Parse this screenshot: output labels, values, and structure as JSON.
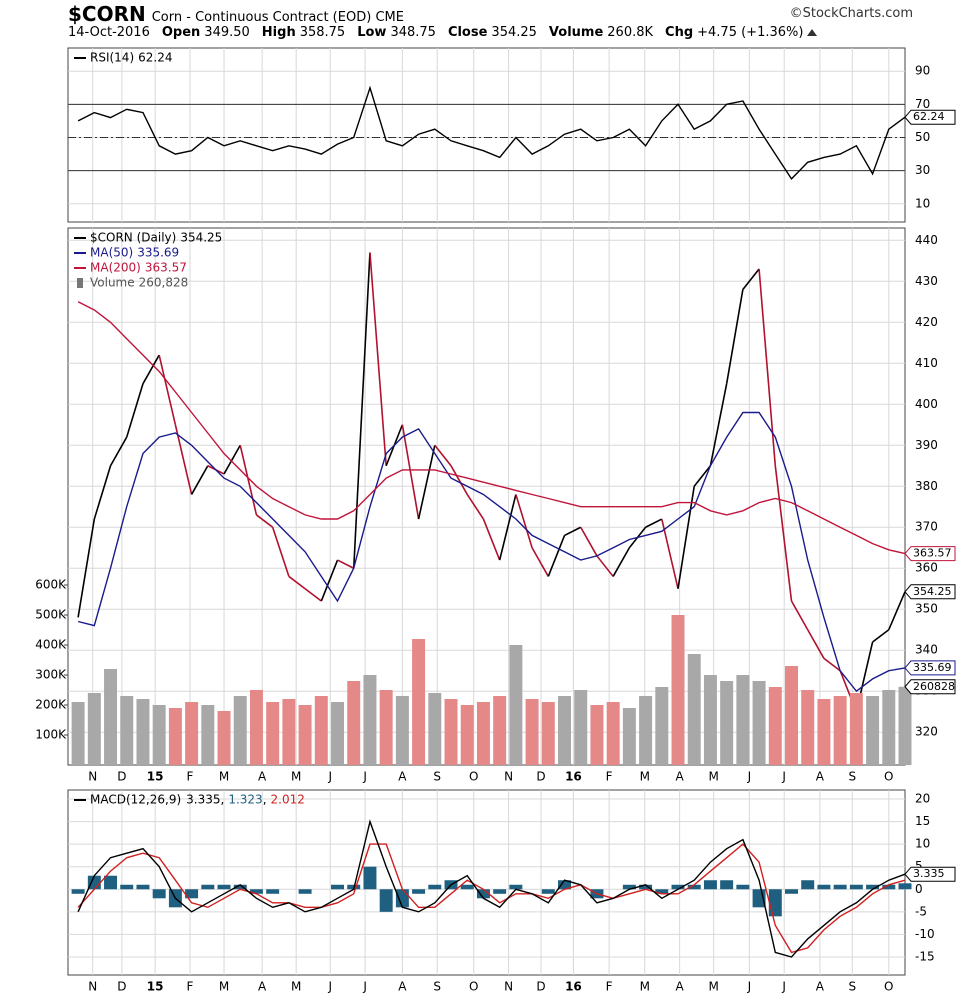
{
  "header": {
    "symbol": "$CORN",
    "name": "Corn - Continuous Contract (EOD)",
    "exchange": "CME",
    "source": "©StockCharts.com",
    "date": "14-Oct-2016",
    "fields": [
      {
        "label": "Open",
        "value": "349.50"
      },
      {
        "label": "High",
        "value": "358.75"
      },
      {
        "label": "Low",
        "value": "348.75"
      },
      {
        "label": "Close",
        "value": "354.25"
      },
      {
        "label": "Volume",
        "value": "260.8K"
      },
      {
        "label": "Chg",
        "value": "+4.75 (+1.36%)"
      }
    ]
  },
  "chart_data": [
    {
      "type": "line",
      "xlim": [
        0,
        51.5
      ],
      "ylim": [
        -1,
        104
      ],
      "yticks": [
        90,
        70,
        50,
        30,
        10
      ],
      "grid": true,
      "xticks": [
        1.4,
        3.2,
        5.25,
        7.4,
        9.5,
        11.85,
        13.95,
        16.05,
        18.2,
        20.5,
        22.65,
        24.9,
        27.05,
        29.05,
        31.05,
        33.25,
        35.45,
        37.6,
        39.7,
        41.9,
        44.05,
        46.25,
        48.25,
        50.5
      ],
      "reference_lines": [
        {
          "value": 70,
          "style": "solid"
        },
        {
          "value": 50,
          "style": "dashed"
        },
        {
          "value": 30,
          "style": "solid"
        }
      ],
      "series": [
        {
          "name": "RSI(14)",
          "type": "line",
          "color": "#000000",
          "tag": true,
          "values": [
            60,
            65,
            62,
            67,
            65,
            45,
            40,
            42,
            50,
            45,
            48,
            45,
            42,
            45,
            43,
            40,
            46,
            50,
            80,
            48,
            45,
            52,
            55,
            48,
            45,
            42,
            38,
            50,
            40,
            45,
            52,
            55,
            48,
            50,
            55,
            45,
            60,
            70,
            55,
            60,
            70,
            72,
            55,
            40,
            25,
            35,
            38,
            40,
            45,
            28,
            55,
            62.24
          ]
        }
      ]
    },
    {
      "type": "line",
      "xlim": [
        0,
        51.5
      ],
      "ylim": [
        312,
        443
      ],
      "yticks": [
        440,
        430,
        420,
        410,
        400,
        390,
        380,
        370,
        360,
        350,
        340,
        330,
        320
      ],
      "grid": true,
      "y2lim": [
        0,
        1790000
      ],
      "y2ticks": [
        {
          "value": 100000,
          "label": "100K"
        },
        {
          "value": 200000,
          "label": "200K"
        },
        {
          "value": 300000,
          "label": "300K"
        },
        {
          "value": 400000,
          "label": "400K"
        },
        {
          "value": 500000,
          "label": "500K"
        },
        {
          "value": 600000,
          "label": "600K"
        }
      ],
      "xticks": [
        {
          "value": 1.4,
          "label": "N"
        },
        {
          "value": 3.2,
          "label": "D"
        },
        {
          "value": 5.25,
          "label": "15"
        },
        {
          "value": 7.4,
          "label": "F"
        },
        {
          "value": 9.5,
          "label": "M"
        },
        {
          "value": 11.85,
          "label": "A"
        },
        {
          "value": 13.95,
          "label": "M"
        },
        {
          "value": 16.05,
          "label": "J"
        },
        {
          "value": 18.2,
          "label": "J"
        },
        {
          "value": 20.5,
          "label": "A"
        },
        {
          "value": 22.65,
          "label": "S"
        },
        {
          "value": 24.9,
          "label": "O"
        },
        {
          "value": 27.05,
          "label": "N"
        },
        {
          "value": 29.05,
          "label": "D"
        },
        {
          "value": 31.05,
          "label": "16"
        },
        {
          "value": 33.25,
          "label": "F"
        },
        {
          "value": 35.45,
          "label": "M"
        },
        {
          "value": 37.6,
          "label": "A"
        },
        {
          "value": 39.7,
          "label": "M"
        },
        {
          "value": 41.9,
          "label": "J"
        },
        {
          "value": 44.05,
          "label": "J"
        },
        {
          "value": 46.25,
          "label": "A"
        },
        {
          "value": 48.25,
          "label": "S"
        },
        {
          "value": 50.5,
          "label": "O"
        }
      ],
      "series": [
        {
          "name": "$CORN (Daily)",
          "type": "line",
          "color": "#000000",
          "down_color": "#b0122e",
          "tag": true,
          "values": [
            348,
            372,
            385,
            392,
            405,
            412,
            395,
            378,
            385,
            383,
            390,
            373,
            370,
            358,
            355,
            352,
            362,
            360,
            437,
            385,
            395,
            372,
            390,
            385,
            378,
            372,
            362,
            378,
            365,
            358,
            368,
            370,
            363,
            358,
            365,
            370,
            372,
            355,
            380,
            385,
            405,
            428,
            433,
            385,
            352,
            345,
            338,
            335,
            325,
            342,
            345,
            354.25
          ]
        },
        {
          "name": "MA(50)",
          "type": "line",
          "color": "#1a1a8c",
          "tag": true,
          "values": [
            347,
            346,
            360,
            375,
            388,
            392,
            393,
            390,
            386,
            382,
            380,
            376,
            372,
            368,
            364,
            358,
            352,
            360,
            375,
            388,
            392,
            394,
            388,
            382,
            380,
            378,
            375,
            372,
            368,
            366,
            364,
            362,
            363,
            365,
            367,
            368,
            369,
            372,
            375,
            385,
            392,
            398,
            398,
            392,
            380,
            362,
            348,
            335,
            330,
            333,
            335,
            335.69
          ]
        },
        {
          "name": "MA(200)",
          "type": "line",
          "color": "#c0143c",
          "tag": true,
          "values": [
            425,
            423,
            420,
            416,
            412,
            408,
            403,
            398,
            393,
            388,
            384,
            380,
            377,
            375,
            373,
            372,
            372,
            374,
            378,
            382,
            384,
            384,
            384,
            383,
            382,
            381,
            380,
            379,
            378,
            377,
            376,
            375,
            375,
            375,
            375,
            375,
            375,
            376,
            376,
            374,
            373,
            374,
            376,
            377,
            376,
            374,
            372,
            370,
            368,
            366,
            364.5,
            363.57
          ]
        },
        {
          "name": "Volume",
          "type": "bar",
          "axis": "y2",
          "color": "#a8a8a8",
          "down_color": "#e58888",
          "tag": true,
          "values": [
            210000,
            240000,
            320000,
            230000,
            220000,
            200000,
            190000,
            210000,
            200000,
            180000,
            230000,
            250000,
            210000,
            220000,
            200000,
            230000,
            210000,
            280000,
            300000,
            250000,
            230000,
            420000,
            240000,
            220000,
            200000,
            210000,
            230000,
            400000,
            220000,
            210000,
            230000,
            250000,
            200000,
            210000,
            190000,
            230000,
            260000,
            500000,
            370000,
            300000,
            280000,
            300000,
            280000,
            260000,
            330000,
            250000,
            220000,
            230000,
            240000,
            230000,
            250000,
            260828
          ],
          "value_labels": [
            null,
            null,
            null,
            null,
            null,
            null,
            null,
            null,
            null,
            null,
            null,
            null,
            null,
            null,
            null,
            null,
            null,
            null,
            null,
            null,
            null,
            null,
            null,
            null,
            null,
            null,
            null,
            null,
            null,
            null,
            null,
            null,
            null,
            null,
            null,
            null,
            null,
            null,
            null,
            null,
            null,
            null,
            null,
            null,
            null,
            null,
            null,
            null,
            null,
            null,
            null,
            "260,828"
          ]
        }
      ]
    },
    {
      "type": "line",
      "xlim": [
        0,
        51.5
      ],
      "ylim": [
        -19,
        22
      ],
      "yticks": [
        20,
        15,
        10,
        5,
        0,
        -5,
        -10,
        -15
      ],
      "grid": true,
      "legend_inline": true,
      "legend_separator": ", ",
      "xticks": [
        {
          "value": 1.4,
          "label": "N"
        },
        {
          "value": 3.2,
          "label": "D"
        },
        {
          "value": 5.25,
          "label": "15"
        },
        {
          "value": 7.4,
          "label": "F"
        },
        {
          "value": 9.5,
          "label": "M"
        },
        {
          "value": 11.85,
          "label": "A"
        },
        {
          "value": 13.95,
          "label": "M"
        },
        {
          "value": 16.05,
          "label": "J"
        },
        {
          "value": 18.2,
          "label": "J"
        },
        {
          "value": 20.5,
          "label": "A"
        },
        {
          "value": 22.65,
          "label": "S"
        },
        {
          "value": 24.9,
          "label": "O"
        },
        {
          "value": 27.05,
          "label": "N"
        },
        {
          "value": 29.05,
          "label": "D"
        },
        {
          "value": 31.05,
          "label": "16"
        },
        {
          "value": 33.25,
          "label": "F"
        },
        {
          "value": 35.45,
          "label": "M"
        },
        {
          "value": 37.6,
          "label": "A"
        },
        {
          "value": 39.7,
          "label": "M"
        },
        {
          "value": 41.9,
          "label": "J"
        },
        {
          "value": 44.05,
          "label": "J"
        },
        {
          "value": 46.25,
          "label": "A"
        },
        {
          "value": 48.25,
          "label": "S"
        },
        {
          "value": 50.5,
          "label": "O"
        }
      ],
      "series": [
        {
          "type": "bar",
          "color": "#1f5f80",
          "values": [
            -1,
            3,
            3,
            1,
            1,
            -2,
            -4,
            -2,
            1,
            1,
            1,
            -1,
            -1,
            0,
            -1,
            0,
            1,
            1,
            5,
            -5,
            -4,
            -1,
            1,
            2,
            1,
            -2,
            -1,
            1,
            0,
            -1,
            2,
            0,
            -2,
            0,
            1,
            1,
            -1,
            1,
            1,
            2,
            2,
            1,
            -4,
            -6,
            -1,
            2,
            1,
            1,
            1,
            1,
            1,
            1.323
          ]
        },
        {
          "type": "line",
          "color": "#d02020",
          "values": [
            -4,
            0,
            4,
            7,
            8,
            7,
            2,
            -3,
            -4,
            -2,
            0,
            -1,
            -3,
            -3,
            -4,
            -4,
            -3,
            -1,
            10,
            10,
            0,
            -4,
            -4,
            -1,
            2,
            0,
            -3,
            -1,
            -1,
            -2,
            0,
            1,
            -1,
            -2,
            -1,
            0,
            -1,
            -1,
            1,
            4,
            7,
            10,
            6,
            -8,
            -14,
            -13,
            -9,
            -6,
            -4,
            -1,
            1,
            2.012
          ]
        },
        {
          "name": "MACD(12,26,9)",
          "type": "line",
          "color": "#000000",
          "tag": true,
          "legend_first": true,
          "values": [
            -5,
            3,
            7,
            8,
            9,
            5,
            -2,
            -5,
            -3,
            -1,
            1,
            -2,
            -4,
            -3,
            -5,
            -4,
            -2,
            0,
            15,
            5,
            -4,
            -5,
            -3,
            1,
            3,
            -2,
            -4,
            0,
            -1,
            -3,
            2,
            1,
            -3,
            -2,
            0,
            1,
            -2,
            0,
            2,
            6,
            9,
            11,
            2,
            -14,
            -15,
            -11,
            -8,
            -5,
            -3,
            0,
            2,
            3.335
          ]
        }
      ]
    }
  ]
}
